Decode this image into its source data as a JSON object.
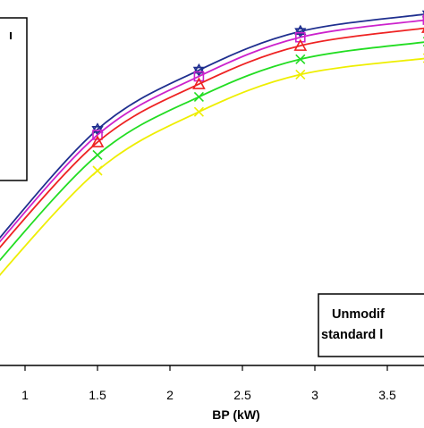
{
  "chart_data": {
    "type": "line",
    "xlabel": "BP (kW)",
    "ylabel": "",
    "xlim": [
      0.75,
      3.85
    ],
    "ylim": [
      0,
      1
    ],
    "x_ticks": [
      {
        "value": 1,
        "label": "1"
      },
      {
        "value": 1.5,
        "label": "1.5"
      },
      {
        "value": 2,
        "label": "2"
      },
      {
        "value": 2.5,
        "label": "2.5"
      },
      {
        "value": 3,
        "label": "3"
      },
      {
        "value": 3.5,
        "label": "3.5"
      }
    ],
    "grid": false,
    "legend_fragment": "ı",
    "annotation": {
      "lines": [
        "Unmodif",
        "standard l"
      ]
    },
    "series": [
      {
        "color": "#1f2f8f",
        "marker": "star",
        "points": [
          [
            0.72,
            0.3
          ],
          [
            1.5,
            0.646
          ],
          [
            2.2,
            0.808
          ],
          [
            2.9,
            0.914
          ],
          [
            3.78,
            0.962
          ]
        ]
      },
      {
        "color": "#cc22cc",
        "marker": "square",
        "points": [
          [
            0.72,
            0.29
          ],
          [
            1.5,
            0.631
          ],
          [
            2.2,
            0.791
          ],
          [
            2.9,
            0.898
          ],
          [
            3.78,
            0.946
          ]
        ]
      },
      {
        "color": "#ee2222",
        "marker": "triangle",
        "points": [
          [
            0.72,
            0.275
          ],
          [
            1.5,
            0.611
          ],
          [
            2.2,
            0.77
          ],
          [
            2.9,
            0.875
          ],
          [
            3.78,
            0.924
          ]
        ]
      },
      {
        "color": "#22dd22",
        "marker": "x",
        "points": [
          [
            0.72,
            0.24
          ],
          [
            1.5,
            0.576
          ],
          [
            2.2,
            0.735
          ],
          [
            2.9,
            0.838
          ],
          [
            3.78,
            0.886
          ]
        ]
      },
      {
        "color": "#eeee00",
        "marker": "x",
        "points": [
          [
            0.72,
            0.2
          ],
          [
            1.5,
            0.533
          ],
          [
            2.2,
            0.694
          ],
          [
            2.9,
            0.796
          ],
          [
            3.78,
            0.841
          ]
        ]
      }
    ]
  }
}
